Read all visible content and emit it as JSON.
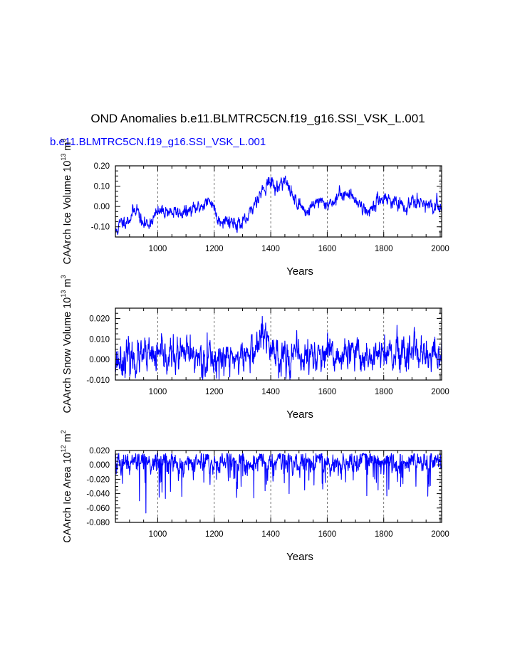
{
  "title": "OND Anomalies b.e11.BLMTRC5CN.f19_g16.SSI_VSK_L.001",
  "subtitle": "b.e11.BLMTRC5CN.f19_g16.SSI_VSK_L.001",
  "series_color": "#0000ff",
  "chart_data": [
    {
      "type": "line",
      "ylabel_main": "CAArch Ice Volume 10",
      "ylabel_exp": "13",
      "ylabel_unit": "m",
      "ylabel_unit_exp": "3",
      "xlabel": "Years",
      "xlim": [
        850,
        2005
      ],
      "ylim": [
        -0.15,
        0.2
      ],
      "xticks": [
        "1000",
        "1200",
        "1400",
        "1600",
        "1800",
        "2000"
      ],
      "yticks": [
        "-0.10",
        "0.00",
        "0.10",
        "0.20"
      ],
      "grid": "vertical-dashed",
      "series": [
        {
          "anchors": [
            [
              850,
              -0.13
            ],
            [
              870,
              -0.08
            ],
            [
              900,
              -0.06
            ],
            [
              925,
              0.0
            ],
            [
              945,
              -0.09
            ],
            [
              970,
              -0.08
            ],
            [
              1000,
              -0.03
            ],
            [
              1030,
              -0.02
            ],
            [
              1060,
              -0.03
            ],
            [
              1100,
              -0.03
            ],
            [
              1140,
              -0.01
            ],
            [
              1170,
              0.02
            ],
            [
              1195,
              0.02
            ],
            [
              1210,
              -0.06
            ],
            [
              1260,
              -0.07
            ],
            [
              1300,
              -0.09
            ],
            [
              1320,
              -0.06
            ],
            [
              1350,
              0.04
            ],
            [
              1390,
              0.12
            ],
            [
              1410,
              0.11
            ],
            [
              1420,
              0.08
            ],
            [
              1445,
              0.14
            ],
            [
              1470,
              0.07
            ],
            [
              1500,
              0.01
            ],
            [
              1530,
              -0.03
            ],
            [
              1560,
              0.03
            ],
            [
              1590,
              0.01
            ],
            [
              1630,
              0.03
            ],
            [
              1650,
              0.07
            ],
            [
              1700,
              0.04
            ],
            [
              1740,
              -0.03
            ],
            [
              1800,
              0.05
            ],
            [
              1840,
              0.02
            ],
            [
              1880,
              -0.02
            ],
            [
              1900,
              0.04
            ],
            [
              1930,
              0.03
            ],
            [
              1960,
              -0.01
            ],
            [
              2005,
              0.01
            ]
          ],
          "noise": 0.014,
          "seed": 11
        }
      ]
    },
    {
      "type": "line",
      "ylabel_main": "CAArch Snow Volume 10",
      "ylabel_exp": "13",
      "ylabel_unit": "m",
      "ylabel_unit_exp": "3",
      "xlabel": "Years",
      "xlim": [
        850,
        2005
      ],
      "ylim": [
        -0.01,
        0.025
      ],
      "xticks": [
        "1000",
        "1200",
        "1400",
        "1600",
        "1800",
        "2000"
      ],
      "yticks": [
        "-0.010",
        "0.000",
        "0.010",
        "0.020"
      ],
      "grid": "vertical-dashed",
      "series": [
        {
          "anchors": [
            [
              850,
              0.0
            ],
            [
              1000,
              0.001
            ],
            [
              1100,
              0.002
            ],
            [
              1200,
              0.0
            ],
            [
              1300,
              0.001
            ],
            [
              1340,
              0.004
            ],
            [
              1370,
              0.011
            ],
            [
              1400,
              0.006
            ],
            [
              1430,
              0.002
            ],
            [
              1500,
              0.001
            ],
            [
              1560,
              0.002
            ],
            [
              1600,
              0.001
            ],
            [
              1700,
              0.002
            ],
            [
              1800,
              0.002
            ],
            [
              1900,
              0.001
            ],
            [
              2005,
              0.001
            ]
          ],
          "noise": 0.0035,
          "seed": 23,
          "spikes": [
            [
              1370,
              0.021
            ],
            [
              1372,
              0.017
            ],
            [
              1803,
              0.012
            ],
            [
              1115,
              0.012
            ],
            [
              1175,
              0.013
            ],
            [
              1450,
              0.009
            ]
          ]
        }
      ]
    },
    {
      "type": "line",
      "ylabel_main": "CAArch Ice Area 10",
      "ylabel_exp": "12",
      "ylabel_unit": "m",
      "ylabel_unit_exp": "2",
      "xlabel": "Years",
      "xlim": [
        850,
        2005
      ],
      "ylim": [
        -0.08,
        0.02
      ],
      "xticks": [
        "1000",
        "1200",
        "1400",
        "1600",
        "1800",
        "2000"
      ],
      "yticks": [
        "-0.080",
        "-0.060",
        "-0.040",
        "-0.020",
        "0.000",
        "0.020"
      ],
      "grid": "vertical-dashed",
      "series": [
        {
          "anchors": [
            [
              850,
              0.004
            ],
            [
              2005,
              0.004
            ]
          ],
          "noise": 0.006,
          "seed": 37,
          "clip_max": 0.016,
          "dips": 0.12,
          "spikes": [
            [
              958,
              -0.067
            ],
            [
              935,
              -0.05
            ],
            [
              1005,
              -0.045
            ],
            [
              1015,
              -0.038
            ],
            [
              1045,
              -0.037
            ],
            [
              1085,
              -0.044
            ],
            [
              1340,
              -0.046
            ],
            [
              1465,
              -0.04
            ],
            [
              1740,
              -0.043
            ],
            [
              1380,
              -0.036
            ],
            [
              1520,
              -0.035
            ],
            [
              1780,
              -0.035
            ],
            [
              1295,
              -0.03
            ],
            [
              1860,
              -0.03
            ],
            [
              1960,
              -0.03
            ]
          ]
        }
      ]
    }
  ]
}
